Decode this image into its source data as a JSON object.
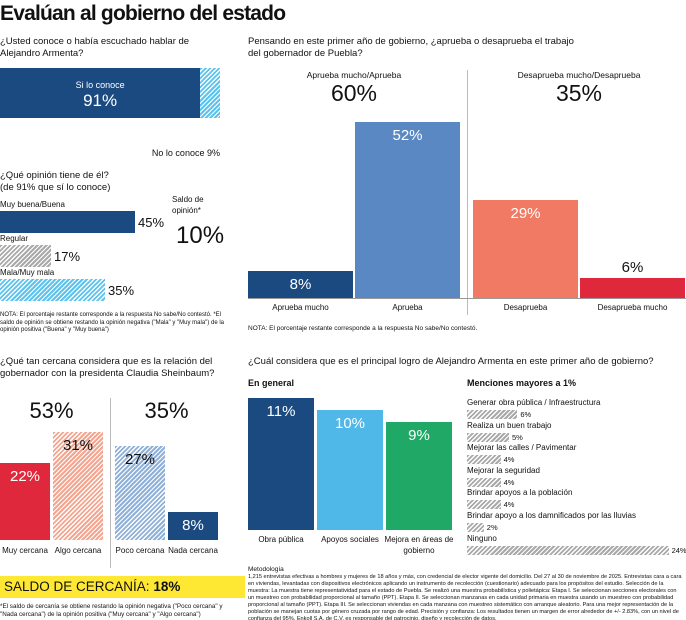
{
  "title": "Evalúan al gobierno del estado",
  "chart_data": [
    {
      "type": "stacked-hbar",
      "title": "¿Usted conoce o había escuchado hablar de Alejandro Armenta?",
      "series": [
        {
          "name": "Si lo conoce",
          "color": "#1b4a80",
          "hatched": false,
          "values": [
            91
          ],
          "value_labels": [
            "91%"
          ]
        },
        {
          "name": "No lo conoce",
          "color": "#5bc3ee",
          "hatched": true,
          "values": [
            9
          ],
          "value_labels": [
            "9%"
          ]
        }
      ]
    },
    {
      "type": "hbar",
      "title": "¿Qué opinión tiene de él?",
      "subtitle": "(de 91% que sí lo conoce)",
      "categories": [
        "Muy buena/Buena",
        "Regular",
        "Mala/Muy mala"
      ],
      "values": [
        45,
        17,
        35
      ],
      "value_labels": [
        "45%",
        "17%",
        "35%"
      ],
      "colors": [
        "#1b4a80",
        "#a9a9a9",
        "#5bc3ee"
      ],
      "hatched": [
        false,
        true,
        true
      ],
      "annotation": {
        "label": "Saldo de opinión*",
        "value": "10%"
      },
      "note": "NOTA: El porcentaje restante corresponde a la respuesta No sabe/No contestó. *El saldo de opinión se obtiene restando la opinión negativa (\"Mala\" y \"Muy mala\") de la opinión positiva (\"Buena\" y \"Muy buena\")"
    },
    {
      "type": "vbar",
      "title": "Pensando en este primer año de gobierno, ¿aprueba o desaprueba el trabajo del gobernador de Puebla?",
      "groups": [
        {
          "label": "Aprueba mucho/Aprueba",
          "total": "60%"
        },
        {
          "label": "Desaprueba mucho/Desaprueba",
          "total": "35%"
        }
      ],
      "categories": [
        "Aprueba mucho",
        "Aprueba",
        "Desaprueba",
        "Desaprueba mucho"
      ],
      "values": [
        8,
        52,
        29,
        6
      ],
      "value_labels": [
        "8%",
        "52%",
        "29%",
        "6%"
      ],
      "colors": [
        "#1b4a80",
        "#5a88c2",
        "#f07a63",
        "#e0283c"
      ],
      "hatched": [
        false,
        false,
        false,
        false
      ],
      "note": "NOTA: El porcentaje restante corresponde a la respuesta No sabe/No contestó."
    },
    {
      "type": "vbar",
      "title": "¿Qué tan cercana considera que es la relación del gobernador con la presidenta Claudia Sheinbaum?",
      "groups": [
        {
          "total": "53%"
        },
        {
          "total": "35%"
        }
      ],
      "categories": [
        "Muy cercana",
        "Algo cercana",
        "Poco cercana",
        "Nada cercana"
      ],
      "values": [
        22,
        31,
        27,
        8
      ],
      "value_labels": [
        "22%",
        "31%",
        "27%",
        "8%"
      ],
      "colors": [
        "#e0283c",
        "#f4a58f",
        "#8fb0d8",
        "#1b4a80"
      ],
      "hatched": [
        false,
        true,
        true,
        false
      ],
      "balance": {
        "label": "SALDO DE CERCANÍA:",
        "value": "18%"
      },
      "note": "*El saldo de cercanía se obtiene restando la opinión negativa (\"Poco cercana\" y \"Nada cercana\") de la opinión positiva (\"Muy cercana\" y \"Algo cercana\")"
    },
    {
      "type": "vbar",
      "title": "¿Cuál considera que es el principal logro de Alejandro Armenta en este primer año de gobierno?",
      "subtitle": "En general",
      "categories": [
        "Obra pública",
        "Apoyos sociales",
        "Mejora en áreas de gobierno"
      ],
      "values": [
        11,
        10,
        9
      ],
      "value_labels": [
        "11%",
        "10%",
        "9%"
      ],
      "colors": [
        "#1b4a80",
        "#4fb8e8",
        "#1fa866"
      ],
      "hatched": [
        false,
        false,
        false
      ]
    },
    {
      "type": "hbar-list",
      "subtitle": "Menciones mayores a 1%",
      "categories": [
        "Generar obra pública / Infraestructura",
        "Realiza un buen trabajo",
        "Mejorar las calles / Pavimentar",
        "Mejorar la seguridad",
        "Brindar apoyos a la población",
        "Brindar apoyo a los damnificados por las lluvias",
        "Ninguno"
      ],
      "values": [
        6,
        5,
        4,
        4,
        4,
        2,
        24
      ],
      "value_labels": [
        "6%",
        "5%",
        "4%",
        "4%",
        "4%",
        "2%",
        "24%"
      ],
      "color": "#a9a9a9",
      "hatched": true
    }
  ],
  "methodology": {
    "title": "Metodología",
    "text": "1,215 entrevistas efectivas a hombres y mujeres de 18 años y más, con credencial de elector vigente del domicilio. Del 27 al 30 de noviembre de 2025. Entrevistas cara a cara en viviendas, levantadas con dispositivos electrónicos aplicando un instrumento de recolección (cuestionario) adecuado para los propósitos del estudio. Selección de la muestra: La muestra tiene representatividad para el estado de Puebla. Se realizó una muestra probabilística y polietápica: Etapa I. Se seleccionan secciones electorales con un muestreo con probabilidad proporcional al tamaño (PPT). Etapa II. Se seleccionan manzanas en cada unidad primaria en muestra usando un muestreo con probabilidad proporcional al tamaño (PPT). Etapa III. Se seleccionan viviendas en cada manzana con muestreo sistemático con arranque aleatorio. Para una mejor representación de la población se manejan cuotas por género cruzada por rango de edad. Precisión y confianza: Los resultados tienen un margen de error alrededor de +/- 2.83%, con un nivel de confianza del 95%. Enkoll S.A. de C.V. es responsable del patrocinio, diseño y recolección de datos."
  }
}
